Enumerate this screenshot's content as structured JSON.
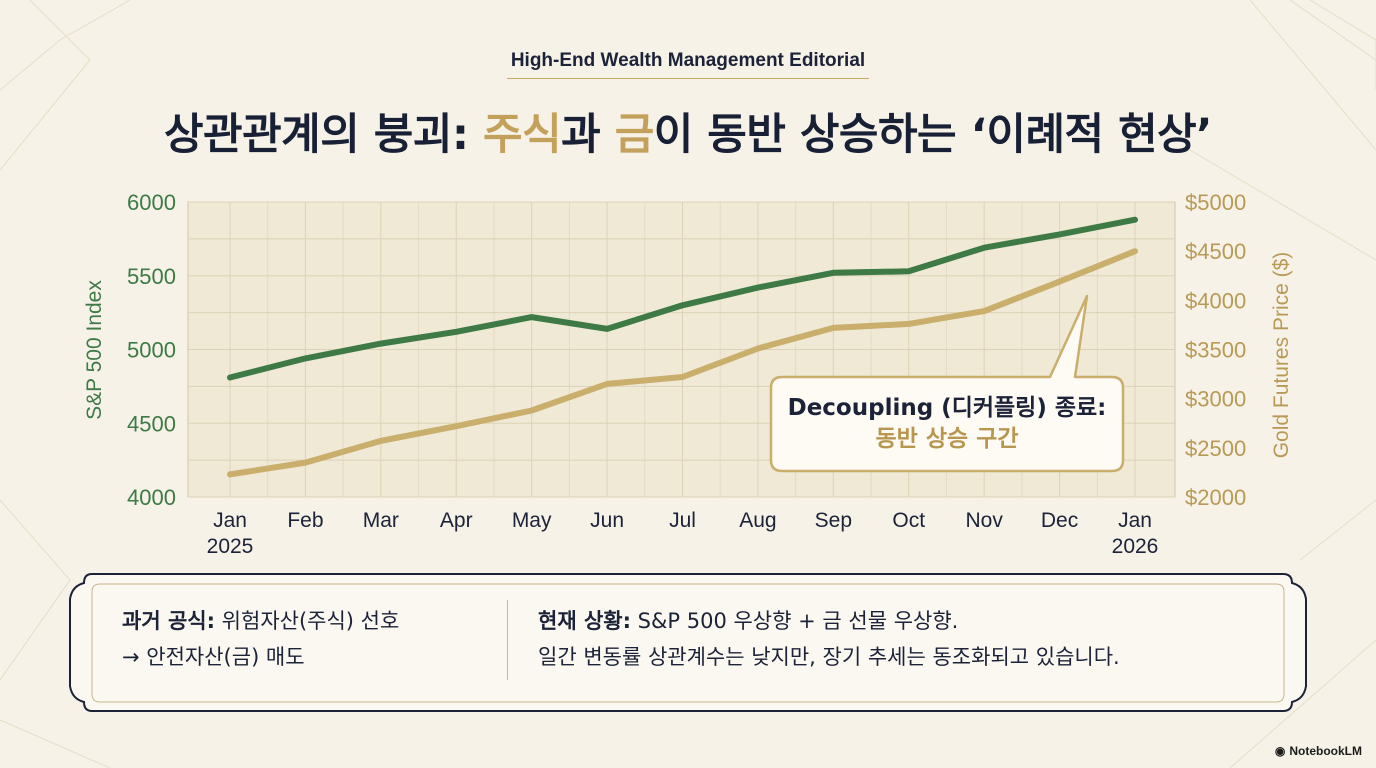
{
  "eyebrow": "High-End Wealth Management Editorial",
  "headline": {
    "part1": "상관관계의 붕괴: ",
    "gold1": "주식",
    "part2": "과 ",
    "gold2": "금",
    "part3": "이 동반 상승하는 ‘이례적 현상’"
  },
  "chart_data": {
    "type": "line",
    "categories": [
      "Jan\n2025",
      "Feb",
      "Mar",
      "Apr",
      "May",
      "Jun",
      "Jul",
      "Aug",
      "Sep",
      "Oct",
      "Nov",
      "Dec",
      "Jan\n2026"
    ],
    "y_left": {
      "label": "S&P 500 Index",
      "ylim": [
        4000,
        6000
      ],
      "ticks": [
        "4000",
        "4500",
        "5000",
        "5500",
        "6000"
      ]
    },
    "y_right": {
      "label": "Gold Futures Price ($)",
      "ylim": [
        2000,
        5000
      ],
      "ticks": [
        "$2000",
        "$2500",
        "$3000",
        "$3500",
        "$4000",
        "$4500",
        "$5000"
      ]
    },
    "grid": true,
    "series": [
      {
        "name": "S&P 500 Index",
        "axis": "left",
        "color": "#3d7a45",
        "values": [
          4810,
          4940,
          5040,
          5120,
          5220,
          5140,
          5300,
          5420,
          5520,
          5530,
          5690,
          5780,
          5880
        ]
      },
      {
        "name": "Gold Futures Price ($)",
        "axis": "right",
        "color": "#c9ae6c",
        "values": [
          2230,
          2350,
          2570,
          2720,
          2880,
          3150,
          3220,
          3510,
          3720,
          3760,
          3890,
          4190,
          4500
        ]
      }
    ]
  },
  "callout": {
    "line1": "Decoupling (디커플링) 종료:",
    "line2": "동반 상승 구간"
  },
  "info": {
    "left_label": "과거 공식:",
    "left_text1": " 위험자산(주식) 선호",
    "left_text2": "→ 안전자산(금) 매도",
    "right_label": "현재 상황:",
    "right_text1": " S&P 500 우상향 + 금 선물 우상향.",
    "right_text2": "일간 변동률 상관계수는 낮지만, 장기 추세는 동조화되고 있습니다."
  },
  "brand": "NotebookLM",
  "colors": {
    "navy": "#1c2238",
    "gold": "#c3a15a",
    "green": "#3d7a45",
    "gold_line": "#c9ae6c"
  }
}
